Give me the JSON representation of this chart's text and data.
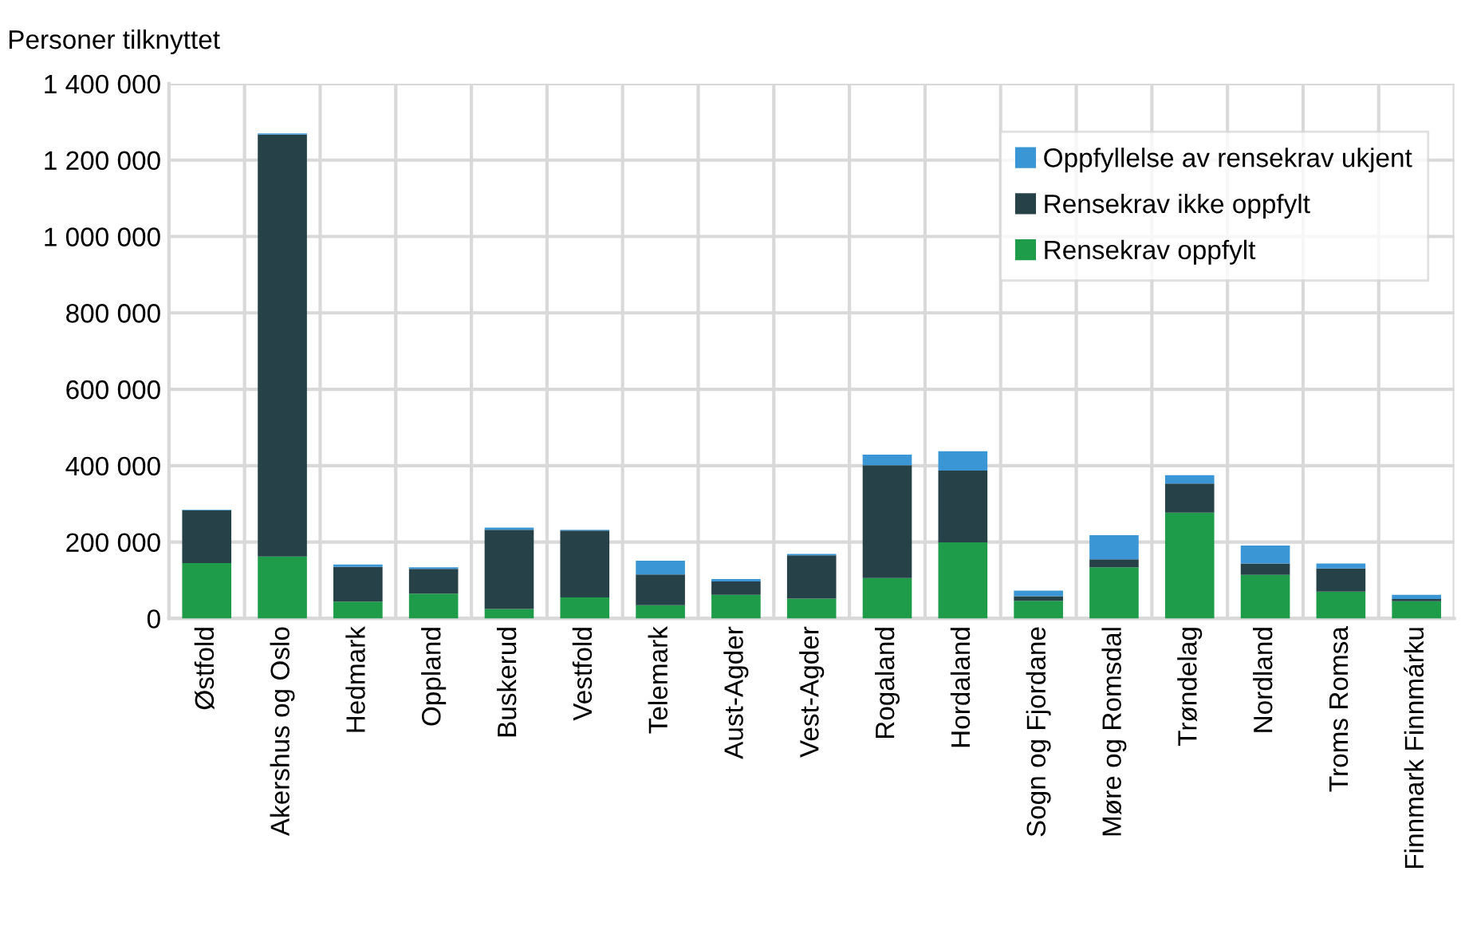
{
  "chart_data": {
    "type": "bar",
    "stacked": true,
    "ylabel": "Personer tilknyttet",
    "categories": [
      "Østfold",
      "Akershus og Oslo",
      "Hedmark",
      "Oppland",
      "Buskerud",
      "Vestfold",
      "Telemark",
      "Aust-Agder",
      "Vest-Agder",
      "Rogaland",
      "Hordaland",
      "Sogn og Fjordane",
      "Møre og Romsdal",
      "Trøndelag",
      "Nordland",
      "Troms Romsa",
      "Finnmark Finnmárku"
    ],
    "series": [
      {
        "name": "Rensekrav oppfylt",
        "color": "#1e9c4a",
        "values": [
          145000,
          162000,
          44000,
          65000,
          25000,
          55000,
          35000,
          62000,
          52000,
          106000,
          199000,
          46000,
          134000,
          277000,
          114000,
          70000,
          45000
        ]
      },
      {
        "name": "Rensekrav ikke oppfylt",
        "color": "#264147",
        "values": [
          138000,
          1105000,
          91000,
          65000,
          207000,
          175000,
          80000,
          35000,
          113000,
          295000,
          188000,
          12000,
          21000,
          76000,
          30000,
          61000,
          6000
        ]
      },
      {
        "name": "Oppfyllelse av rensekrav ukjent",
        "color": "#3a96d4",
        "values": [
          2000,
          3000,
          6000,
          4000,
          6000,
          2000,
          36000,
          6000,
          4000,
          28000,
          51000,
          15000,
          63000,
          22000,
          47000,
          13000,
          11000
        ]
      }
    ],
    "ylim": [
      0,
      1400000
    ],
    "yticks": [
      0,
      {
        "value": 200000,
        "label": "200 000"
      },
      {
        "value": 400000,
        "label": "400 000"
      },
      {
        "value": 600000,
        "label": "600 000"
      },
      {
        "value": 800000,
        "label": "800 000"
      },
      {
        "value": 1000000,
        "label": "1 000 000"
      },
      {
        "value": 1200000,
        "label": "1 200 000"
      },
      {
        "value": 1400000,
        "label": "1 400 000"
      }
    ],
    "grid": true,
    "legend": "top right"
  }
}
